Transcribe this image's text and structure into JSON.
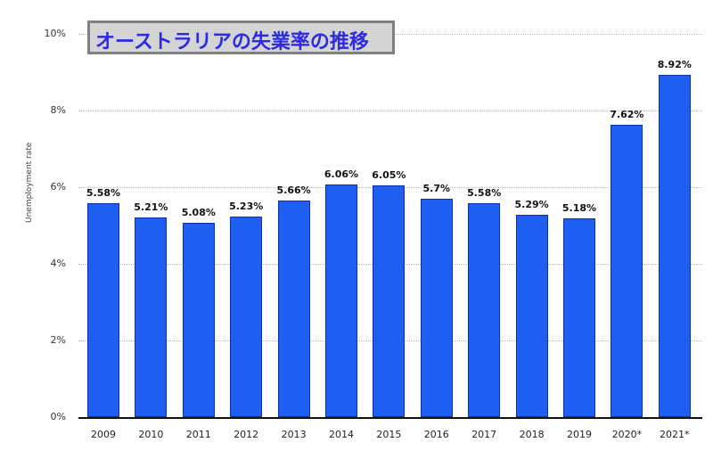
{
  "chart_data": {
    "type": "bar",
    "title": "オーストラリアの失業率の推移",
    "xlabel": "",
    "ylabel": "Unemployment rate",
    "ylim": [
      0,
      10
    ],
    "yticks": [
      "0%",
      "2%",
      "4%",
      "6%",
      "8%",
      "10%"
    ],
    "grid": true,
    "categories": [
      "2009",
      "2010",
      "2011",
      "2012",
      "2013",
      "2014",
      "2015",
      "2016",
      "2017",
      "2018",
      "2019",
      "2020*",
      "2021*"
    ],
    "values": [
      5.58,
      5.21,
      5.08,
      5.23,
      5.66,
      6.06,
      6.05,
      5.7,
      5.58,
      5.29,
      5.18,
      7.62,
      8.92
    ],
    "value_labels": [
      "5.58%",
      "5.21%",
      "5.08%",
      "5.23%",
      "5.66%",
      "6.06%",
      "6.05%",
      "5.7%",
      "5.58%",
      "5.29%",
      "5.18%",
      "7.62%",
      "8.92%"
    ],
    "bar_color": "#1e5ef0"
  }
}
